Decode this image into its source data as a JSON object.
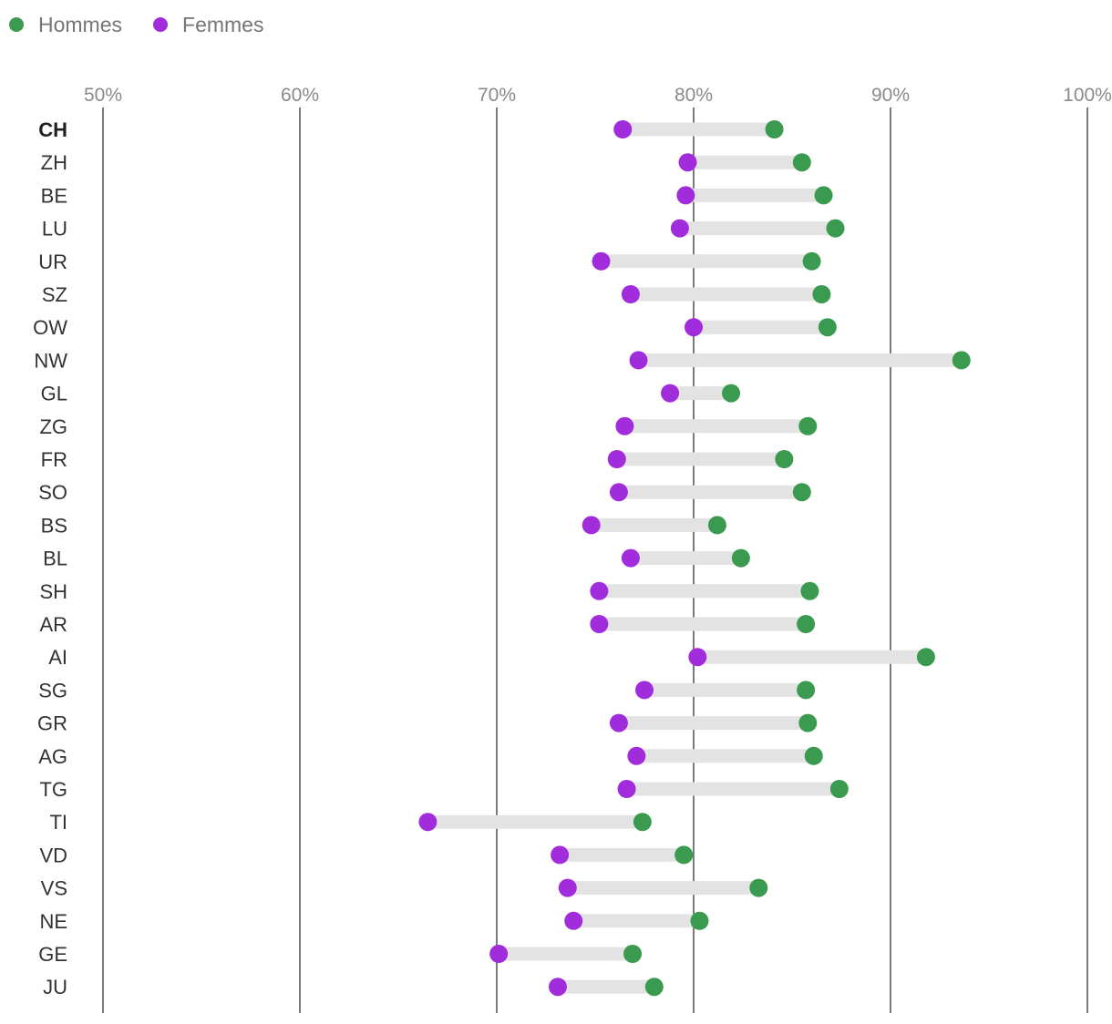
{
  "colors": {
    "hommes": "#3a9a50",
    "femmes": "#a12cdc",
    "range_bar": "#e3e3e3",
    "grid": "#7a7a7a"
  },
  "chart_data": {
    "type": "dumbbell",
    "title": "",
    "xlabel": "",
    "ylabel": "",
    "xlim": [
      50,
      100
    ],
    "x_ticks": [
      50,
      60,
      70,
      80,
      90,
      100
    ],
    "tick_labels": [
      "50%",
      "60%",
      "70%",
      "80%",
      "90%",
      "100%"
    ],
    "legend": [
      {
        "key": "hommes",
        "label": "Hommes"
      },
      {
        "key": "femmes",
        "label": "Femmes"
      }
    ],
    "legend_position": "top-left",
    "categories": [
      "CH",
      "ZH",
      "BE",
      "LU",
      "UR",
      "SZ",
      "OW",
      "NW",
      "GL",
      "ZG",
      "FR",
      "SO",
      "BS",
      "BL",
      "SH",
      "AR",
      "AI",
      "SG",
      "GR",
      "AG",
      "TG",
      "TI",
      "VD",
      "VS",
      "NE",
      "GE",
      "JU"
    ],
    "emphasized_category": "CH",
    "series": [
      {
        "name": "Hommes",
        "key": "hommes",
        "values": [
          84.1,
          85.5,
          86.6,
          87.2,
          86.0,
          86.5,
          86.8,
          93.6,
          81.9,
          85.8,
          84.6,
          85.5,
          81.2,
          82.4,
          85.9,
          85.7,
          91.8,
          85.7,
          85.8,
          86.1,
          87.4,
          77.4,
          79.5,
          83.3,
          80.3,
          76.9,
          78.0
        ]
      },
      {
        "name": "Femmes",
        "key": "femmes",
        "values": [
          76.4,
          79.7,
          79.6,
          79.3,
          75.3,
          76.8,
          80.0,
          77.2,
          78.8,
          76.5,
          76.1,
          76.2,
          74.8,
          76.8,
          75.2,
          75.2,
          80.2,
          77.5,
          76.2,
          77.1,
          76.6,
          66.5,
          73.2,
          73.6,
          73.9,
          70.1,
          73.1
        ]
      }
    ]
  }
}
